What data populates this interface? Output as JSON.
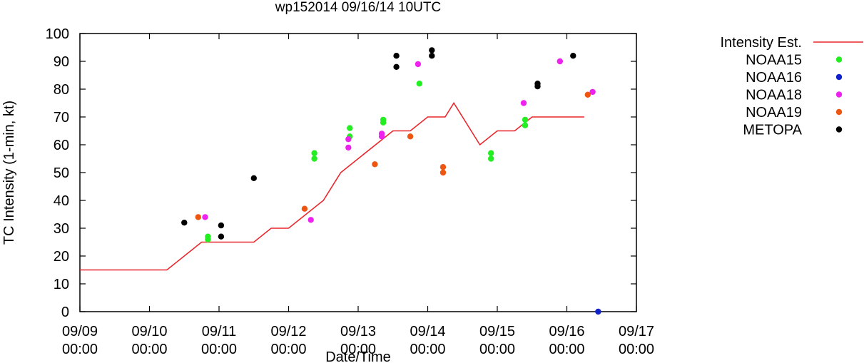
{
  "chart_data": {
    "type": "scatter",
    "title": "wp152014 09/16/14 10UTC",
    "xlabel": "Date/Time",
    "ylabel": "TC Intensity (1-min, kt)",
    "ylim": [
      0,
      100
    ],
    "yticks": [
      "0",
      "10",
      "20",
      "30",
      "40",
      "50",
      "60",
      "70",
      "80",
      "90",
      "100"
    ],
    "xlim_days": [
      0,
      8
    ],
    "xticks": [
      {
        "date": "09/09",
        "time": "00:00"
      },
      {
        "date": "09/10",
        "time": "00:00"
      },
      {
        "date": "09/11",
        "time": "00:00"
      },
      {
        "date": "09/12",
        "time": "00:00"
      },
      {
        "date": "09/13",
        "time": "00:00"
      },
      {
        "date": "09/14",
        "time": "00:00"
      },
      {
        "date": "09/15",
        "time": "00:00"
      },
      {
        "date": "09/16",
        "time": "00:00"
      },
      {
        "date": "09/17",
        "time": "00:00"
      }
    ],
    "grid": false,
    "legend_position": "outside-right",
    "series": [
      {
        "name": "Intensity Est.",
        "kind": "line",
        "color": "#e8262b",
        "points": [
          [
            0,
            15
          ],
          [
            1.25,
            15
          ],
          [
            1.75,
            25
          ],
          [
            2.5,
            25
          ],
          [
            2.75,
            30
          ],
          [
            3,
            30
          ],
          [
            3.5,
            40
          ],
          [
            3.75,
            50
          ],
          [
            4,
            55
          ],
          [
            4.5,
            65
          ],
          [
            4.75,
            65
          ],
          [
            5,
            70
          ],
          [
            5.25,
            70
          ],
          [
            5.375,
            75
          ],
          [
            5.75,
            60
          ],
          [
            6,
            65
          ],
          [
            6.25,
            65
          ],
          [
            6.5,
            70
          ],
          [
            7.25,
            70
          ]
        ]
      },
      {
        "name": "NOAA15",
        "kind": "points",
        "color": "#22ee22",
        "points": [
          [
            1.84,
            27
          ],
          [
            1.84,
            26
          ],
          [
            3.37,
            57
          ],
          [
            3.37,
            55
          ],
          [
            3.88,
            66
          ],
          [
            3.88,
            63
          ],
          [
            4.36,
            69
          ],
          [
            4.36,
            68
          ],
          [
            4.88,
            82
          ],
          [
            5.91,
            57
          ],
          [
            5.91,
            55
          ],
          [
            6.4,
            69
          ],
          [
            6.4,
            67
          ]
        ]
      },
      {
        "name": "NOAA16",
        "kind": "points",
        "color": "#1122cc",
        "points": [
          [
            7.45,
            0
          ]
        ]
      },
      {
        "name": "NOAA18",
        "kind": "points",
        "color": "#ee22ee",
        "points": [
          [
            1.8,
            34
          ],
          [
            3.32,
            33
          ],
          [
            3.86,
            62
          ],
          [
            3.86,
            59
          ],
          [
            4.34,
            64
          ],
          [
            4.34,
            63
          ],
          [
            4.86,
            89
          ],
          [
            6.38,
            75
          ],
          [
            6.9,
            90
          ],
          [
            7.37,
            79
          ]
        ]
      },
      {
        "name": "NOAA19",
        "kind": "points",
        "color": "#ee5511",
        "points": [
          [
            1.7,
            34
          ],
          [
            3.23,
            37
          ],
          [
            4.24,
            53
          ],
          [
            4.75,
            63
          ],
          [
            5.22,
            52
          ],
          [
            5.22,
            50
          ],
          [
            7.3,
            78
          ]
        ]
      },
      {
        "name": "METOPA",
        "kind": "points",
        "color": "#000000",
        "points": [
          [
            1.5,
            32
          ],
          [
            2.03,
            31
          ],
          [
            2.03,
            27
          ],
          [
            2.5,
            48
          ],
          [
            4.55,
            92
          ],
          [
            4.55,
            88
          ],
          [
            5.06,
            94
          ],
          [
            5.06,
            92
          ],
          [
            6.58,
            82
          ],
          [
            6.58,
            81
          ],
          [
            7.09,
            92
          ]
        ]
      }
    ]
  }
}
